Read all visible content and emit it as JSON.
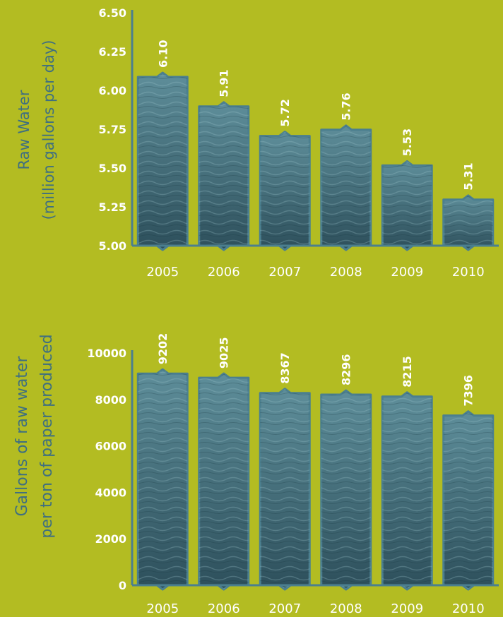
{
  "colors": {
    "background": "#b3bc22",
    "bar_top": "#5e8e9a",
    "bar_bottom": "#2d4f5b",
    "bar_outline": "#4b7f8f",
    "axis": "#4b7f8f",
    "text": "#ffffff"
  },
  "chart_data": [
    {
      "type": "bar",
      "categories": [
        "2005",
        "2006",
        "2007",
        "2008",
        "2009",
        "2010"
      ],
      "values": [
        6.1,
        5.91,
        5.72,
        5.76,
        5.53,
        5.31
      ],
      "value_labels": [
        "6.10",
        "5.91",
        "5.72",
        "5.76",
        "5.53",
        "5.31"
      ],
      "ylabel": [
        "Raw Water",
        "(million gallons per day)"
      ],
      "ylim": [
        5.0,
        6.5
      ],
      "yticks": [
        5.0,
        5.25,
        5.5,
        5.75,
        6.0,
        6.25,
        6.5
      ],
      "ytick_labels": [
        "5.00",
        "5.25",
        "5.50",
        "5.75",
        "6.00",
        "6.25",
        "6.50"
      ],
      "grid": false
    },
    {
      "type": "bar",
      "categories": [
        "2005",
        "2006",
        "2007",
        "2008",
        "2009",
        "2010"
      ],
      "values": [
        9202,
        9025,
        8367,
        8296,
        8215,
        7396
      ],
      "value_labels": [
        "9202",
        "9025",
        "8367",
        "8296",
        "8215",
        "7396"
      ],
      "ylabel": [
        "Gallons of raw water",
        "per ton of paper produced"
      ],
      "ylim": [
        0,
        10000
      ],
      "yticks": [
        0,
        2000,
        4000,
        6000,
        8000,
        10000
      ],
      "ytick_labels": [
        "0",
        "2000",
        "4000",
        "6000",
        "8000",
        "10000"
      ],
      "grid": false
    }
  ]
}
